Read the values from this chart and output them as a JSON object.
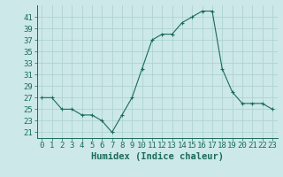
{
  "x": [
    0,
    1,
    2,
    3,
    4,
    5,
    6,
    7,
    8,
    9,
    10,
    11,
    12,
    13,
    14,
    15,
    16,
    17,
    18,
    19,
    20,
    21,
    22,
    23
  ],
  "y": [
    27,
    27,
    25,
    25,
    24,
    24,
    23,
    21,
    24,
    27,
    32,
    37,
    38,
    38,
    40,
    41,
    42,
    42,
    32,
    28,
    26,
    26,
    26,
    25
  ],
  "line_color": "#1a6b5a",
  "marker": "+",
  "bg_color": "#cce8e8",
  "grid_color": "#aacfcf",
  "axis_color": "#1a6b5a",
  "xlabel": "Humidex (Indice chaleur)",
  "xlabel_fontsize": 7.5,
  "ylabel_ticks": [
    21,
    23,
    25,
    27,
    29,
    31,
    33,
    35,
    37,
    39,
    41
  ],
  "ylim": [
    20.0,
    43.0
  ],
  "xlim": [
    -0.5,
    23.5
  ],
  "tick_fontsize": 6.5
}
